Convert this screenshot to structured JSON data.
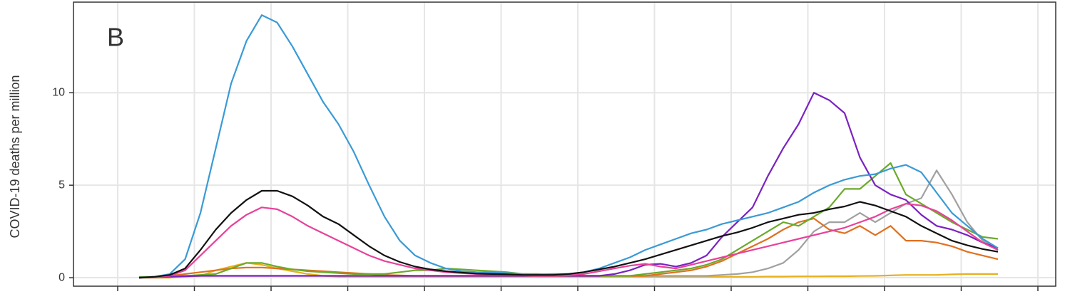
{
  "chart_data": {
    "type": "line",
    "annotation": "B",
    "y_label": "COVID-19 deaths per million",
    "categories": [
      null,
      null,
      null,
      null,
      null,
      null,
      null,
      null,
      null,
      null,
      null,
      null,
      null,
      null,
      null,
      null,
      null,
      null,
      null,
      null,
      null,
      null,
      null,
      null,
      null,
      null,
      null,
      null,
      null,
      null,
      null,
      null,
      null,
      null,
      null,
      null,
      null,
      null,
      null,
      null,
      null,
      null,
      null,
      null,
      null,
      null,
      null,
      null,
      null,
      null,
      null,
      null,
      null,
      null,
      null,
      null,
      null
    ],
    "ylim": [
      -0.46,
      14.9
    ],
    "yticks": [
      0,
      5,
      10
    ],
    "grid": true,
    "series": [
      {
        "color": "#e6b020",
        "values": [
          0,
          0,
          0,
          0.05,
          0.1,
          0.4,
          0.6,
          0.8,
          0.7,
          0.5,
          0.35,
          0.2,
          0.1,
          0.05,
          0.05,
          0.05,
          0.05,
          0.05,
          0.05,
          0.05,
          0.05,
          0.05,
          0.05,
          0.05,
          0.05,
          0.05,
          0.05,
          0.05,
          0.05,
          0.05,
          0.05,
          0.05,
          0.05,
          0.05,
          0.05,
          0.05,
          0.05,
          0.05,
          0.05,
          0.05,
          0.05,
          0.06,
          0.06,
          0.07,
          0.07,
          0.08,
          0.08,
          0.09,
          0.1,
          0.12,
          0.15,
          0.15,
          0.15,
          0.18,
          0.2,
          0.2,
          0.2
        ]
      },
      {
        "color": "#a0a0a0",
        "values": [
          0,
          0.05,
          0.1,
          0.1,
          0.1,
          0.1,
          0.1,
          0.1,
          0.1,
          0.1,
          0.1,
          0.1,
          0.1,
          0.1,
          0.1,
          0.1,
          0.1,
          0.1,
          0.1,
          0.1,
          0.1,
          0.1,
          0.1,
          0.1,
          0.1,
          0.1,
          0.1,
          0.1,
          0.1,
          0.1,
          0.1,
          0.1,
          0.1,
          0.1,
          0.1,
          0.1,
          0.1,
          0.1,
          0.15,
          0.2,
          0.3,
          0.5,
          0.8,
          1.5,
          2.5,
          3,
          3,
          3.5,
          3,
          3.5,
          4,
          4.3,
          5.8,
          4.5,
          3,
          2,
          1.5
        ]
      },
      {
        "color": "#e07020",
        "values": [
          0,
          0.05,
          0.1,
          0.2,
          0.3,
          0.4,
          0.5,
          0.55,
          0.55,
          0.5,
          0.45,
          0.4,
          0.35,
          0.3,
          0.25,
          0.2,
          0.15,
          0.12,
          0.1,
          0.1,
          0.1,
          0.1,
          0.1,
          0.1,
          0.1,
          0.1,
          0.1,
          0.1,
          0.1,
          0.1,
          0.1,
          0.1,
          0.1,
          0.1,
          0.2,
          0.3,
          0.4,
          0.6,
          0.9,
          1.3,
          1.7,
          2.1,
          2.6,
          3,
          3.2,
          2.6,
          2.4,
          2.8,
          2.3,
          2.8,
          2,
          2,
          1.9,
          1.7,
          1.4,
          1.2,
          1
        ]
      },
      {
        "color": "#6aaa2a",
        "values": [
          0.05,
          0.05,
          0.1,
          0.1,
          0.15,
          0.2,
          0.5,
          0.8,
          0.8,
          0.6,
          0.45,
          0.35,
          0.3,
          0.25,
          0.2,
          0.2,
          0.2,
          0.3,
          0.4,
          0.4,
          0.5,
          0.45,
          0.4,
          0.35,
          0.3,
          0.2,
          0.2,
          0.15,
          0.1,
          0.1,
          0.1,
          0.1,
          0.1,
          0.2,
          0.3,
          0.4,
          0.5,
          0.7,
          1,
          1.5,
          2,
          2.5,
          3,
          2.8,
          3.3,
          3.8,
          4.8,
          4.8,
          5.5,
          6.2,
          4.5,
          4,
          3.5,
          3,
          2.6,
          2.2,
          2.1
        ]
      },
      {
        "color": "#7b22c0",
        "values": [
          0,
          0.02,
          0.05,
          0.08,
          0.1,
          0.1,
          0.1,
          0.1,
          0.1,
          0.1,
          0.1,
          0.1,
          0.1,
          0.1,
          0.1,
          0.1,
          0.1,
          0.1,
          0.1,
          0.1,
          0.1,
          0.1,
          0.1,
          0.1,
          0.1,
          0.1,
          0.1,
          0.1,
          0.1,
          0.1,
          0.1,
          0.2,
          0.4,
          0.7,
          0.75,
          0.6,
          0.8,
          1.2,
          2.2,
          3,
          3.8,
          5.5,
          7,
          8.3,
          10,
          9.6,
          8.9,
          6.5,
          5,
          4.5,
          4.2,
          3.4,
          2.8,
          2.6,
          2.3,
          1.9,
          1.6
        ]
      },
      {
        "color": "#e8419a",
        "values": [
          0,
          0.03,
          0.1,
          0.4,
          1.2,
          2,
          2.8,
          3.4,
          3.8,
          3.7,
          3.3,
          2.8,
          2.4,
          2,
          1.6,
          1.2,
          0.9,
          0.7,
          0.5,
          0.4,
          0.3,
          0.25,
          0.2,
          0.17,
          0.15,
          0.12,
          0.1,
          0.1,
          0.12,
          0.2,
          0.35,
          0.5,
          0.65,
          0.75,
          0.6,
          0.5,
          0.7,
          0.9,
          1.1,
          1.3,
          1.5,
          1.7,
          1.9,
          2.1,
          2.3,
          2.5,
          2.7,
          3,
          3.3,
          3.7,
          4,
          3.9,
          3.6,
          3.1,
          2.5,
          1.9,
          1.5
        ]
      },
      {
        "color": "#3a9ad5",
        "values": [
          0,
          0.05,
          0.2,
          1,
          3.5,
          7,
          10.5,
          12.8,
          14.2,
          13.8,
          12.5,
          11,
          9.5,
          8.3,
          6.8,
          5,
          3.3,
          2,
          1.2,
          0.8,
          0.5,
          0.35,
          0.3,
          0.28,
          0.25,
          0.2,
          0.18,
          0.2,
          0.2,
          0.3,
          0.5,
          0.8,
          1.1,
          1.5,
          1.8,
          2.1,
          2.4,
          2.6,
          2.9,
          3.1,
          3.3,
          3.5,
          3.8,
          4.1,
          4.6,
          5,
          5.3,
          5.5,
          5.6,
          5.9,
          6.1,
          5.7,
          4.6,
          3.5,
          2.8,
          2.1,
          1.6
        ]
      },
      {
        "color": "#111111",
        "values": [
          0,
          0.05,
          0.15,
          0.5,
          1.5,
          2.6,
          3.5,
          4.2,
          4.7,
          4.7,
          4.4,
          3.9,
          3.3,
          2.9,
          2.3,
          1.7,
          1.2,
          0.85,
          0.6,
          0.45,
          0.35,
          0.28,
          0.22,
          0.2,
          0.18,
          0.15,
          0.15,
          0.15,
          0.2,
          0.3,
          0.45,
          0.6,
          0.8,
          1,
          1.25,
          1.5,
          1.75,
          2,
          2.25,
          2.45,
          2.7,
          3,
          3.2,
          3.4,
          3.5,
          3.7,
          3.85,
          4.1,
          3.9,
          3.6,
          3.3,
          2.8,
          2.4,
          2,
          1.75,
          1.55,
          1.4
        ]
      }
    ]
  }
}
